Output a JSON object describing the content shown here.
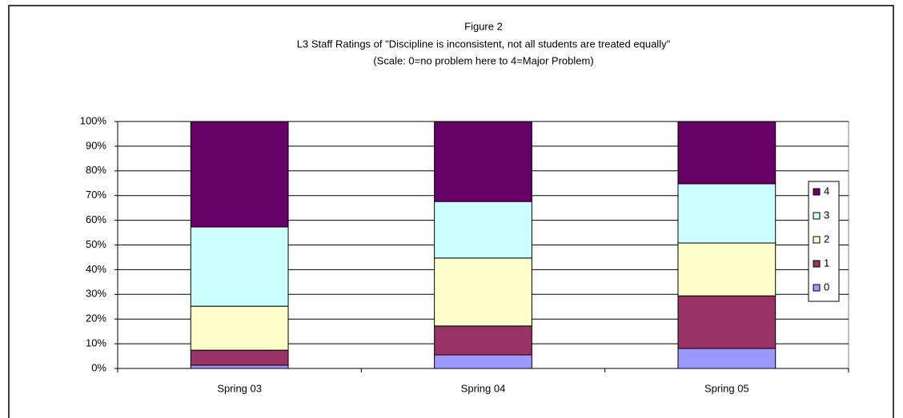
{
  "chart_data": {
    "type": "stacked_bar_100",
    "title": [
      "Figure 2",
      "L3 Staff Ratings of \"Discipline is inconsistent, not all students are treated equally\"",
      "(Scale: 0=no problem here to 4=Major Problem)"
    ],
    "categories": [
      "Spring 03",
      "Spring 04",
      "Spring 05"
    ],
    "series": [
      {
        "name": "0",
        "color": "#9999ff",
        "values": [
          1.3,
          5.5,
          8.1
        ]
      },
      {
        "name": "1",
        "color": "#993366",
        "values": [
          6.1,
          11.7,
          21.3
        ]
      },
      {
        "name": "2",
        "color": "#ffffcc",
        "values": [
          17.8,
          27.5,
          21.4
        ]
      },
      {
        "name": "3",
        "color": "#ccffff",
        "values": [
          32.1,
          22.9,
          24.0
        ]
      },
      {
        "name": "4",
        "color": "#660066",
        "values": [
          42.7,
          32.4,
          25.2
        ]
      }
    ],
    "ylim": [
      0,
      100
    ],
    "yticks": [
      {
        "value": 0,
        "label": "0%"
      },
      {
        "value": 10,
        "label": "10%"
      },
      {
        "value": 20,
        "label": "20%"
      },
      {
        "value": 30,
        "label": "30%"
      },
      {
        "value": 40,
        "label": "40%"
      },
      {
        "value": 50,
        "label": "50%"
      },
      {
        "value": 60,
        "label": "60%"
      },
      {
        "value": 70,
        "label": "70%"
      },
      {
        "value": 80,
        "label": "80%"
      },
      {
        "value": 90,
        "label": "90%"
      },
      {
        "value": 100,
        "label": "100%"
      }
    ],
    "grid": true,
    "legend": "right"
  }
}
